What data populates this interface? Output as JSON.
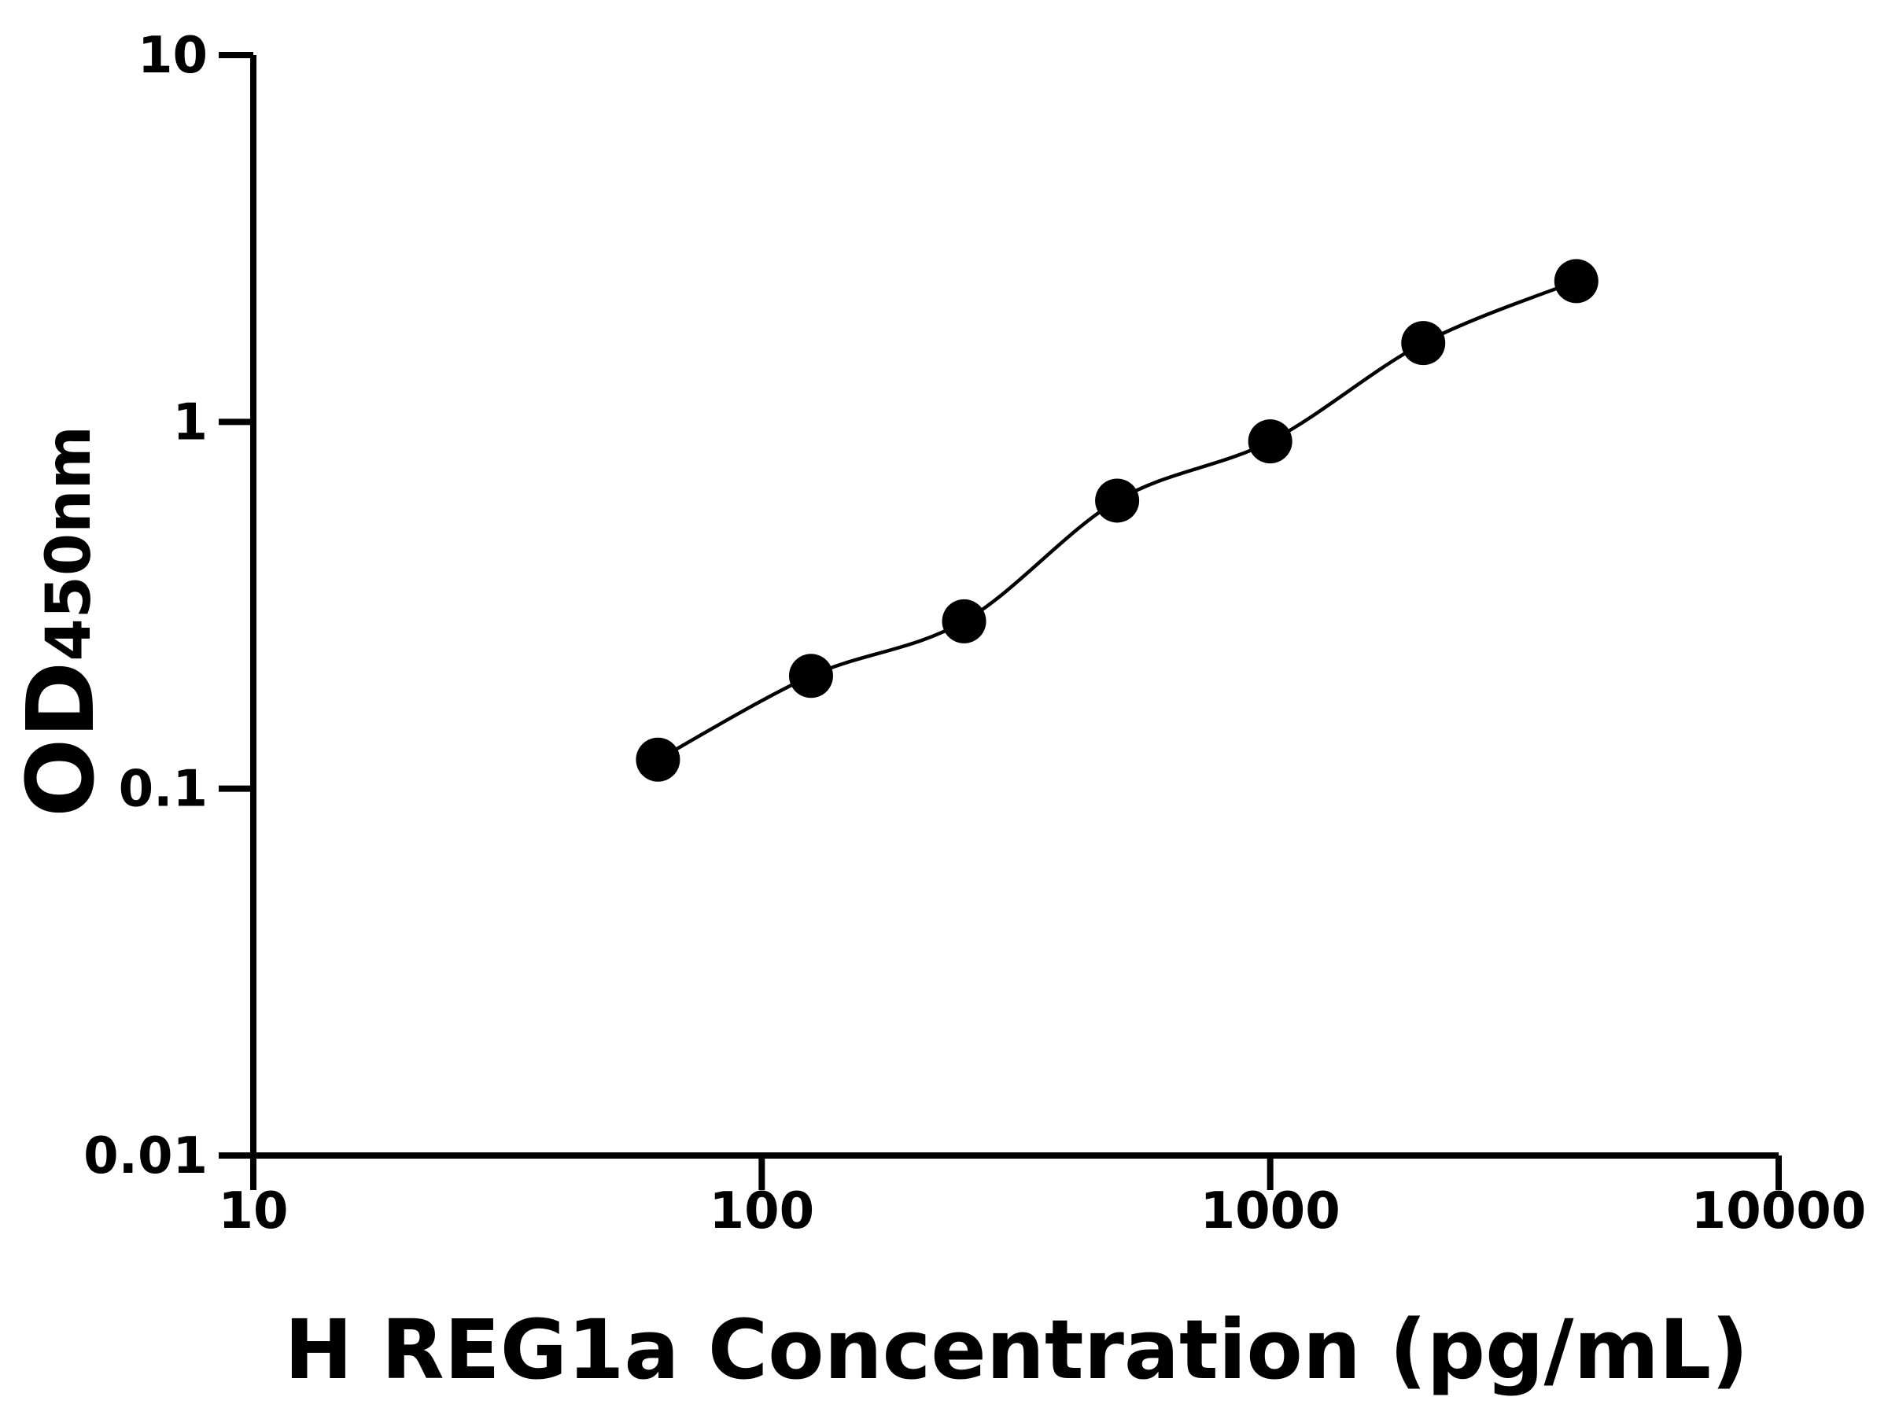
{
  "chart_data": {
    "type": "scatter",
    "x_label": "H REG1a Concentration (pg/mL)",
    "y_label": "OD",
    "y_label_sub": "450nm",
    "x": [
      62.5,
      125,
      250,
      500,
      1000,
      2000,
      4000
    ],
    "values": [
      0.12,
      0.203,
      0.286,
      0.61,
      0.885,
      1.64,
      2.42
    ],
    "color": "#000000",
    "x_log": true,
    "y_log": true,
    "xlim": [
      10,
      10000
    ],
    "xticks": [
      10,
      100,
      1000,
      10000
    ],
    "ylim": [
      0.01,
      10
    ],
    "yticks": [
      0.01,
      0.1,
      1,
      10
    ],
    "grid": false
  }
}
